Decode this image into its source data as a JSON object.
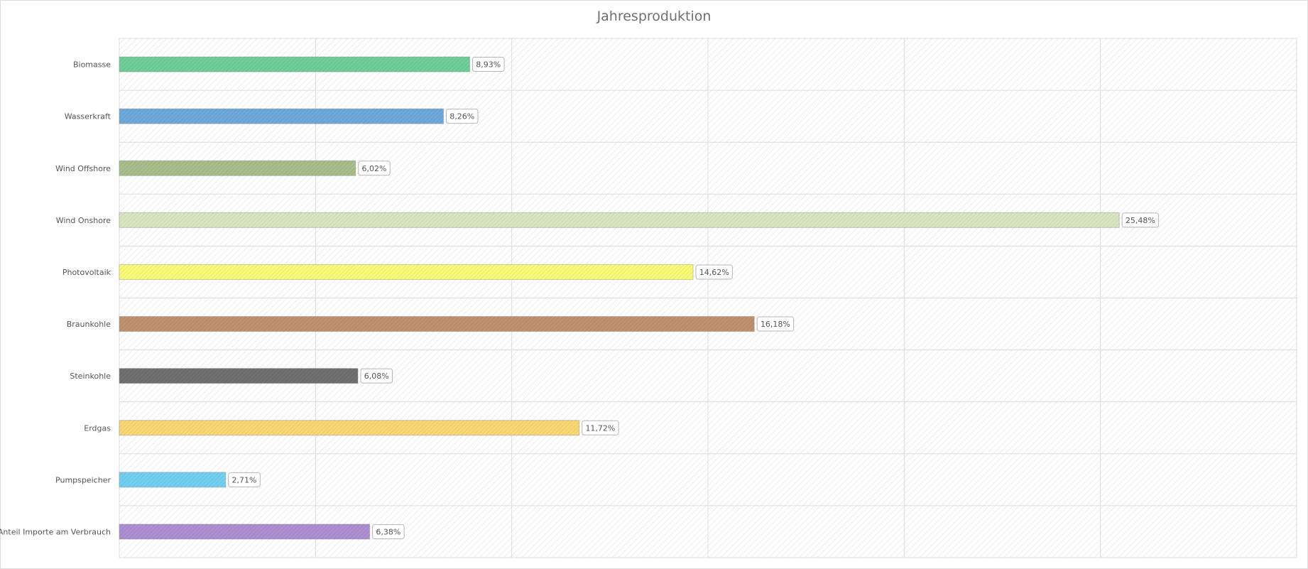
{
  "chart_data": {
    "type": "bar",
    "orientation": "horizontal",
    "title": "Jahresproduktion",
    "xlabel": "",
    "ylabel": "",
    "xlim": [
      0,
      30
    ],
    "grid": true,
    "legend": "none",
    "categories": [
      "Biomasse",
      "Wasserkraft",
      "Wind Offshore",
      "Wind Onshore",
      "Photovoltaik",
      "Braunkohle",
      "Steinkohle",
      "Erdgas",
      "Pumpspeicher",
      "Anteil Importe am Verbrauch"
    ],
    "values": [
      8.93,
      8.26,
      6.02,
      25.48,
      14.62,
      16.18,
      6.08,
      11.72,
      2.71,
      6.38
    ],
    "data_labels": [
      "8,93%",
      "8,26%",
      "6,02%",
      "25,48%",
      "14,62%",
      "16,18%",
      "6,08%",
      "11,72%",
      "2,71%",
      "6,38%"
    ],
    "colors": [
      "#6fcf97",
      "#6fa8dc",
      "#a9be8a",
      "#d9e6c2",
      "#fbfb78",
      "#c0916f",
      "#707070",
      "#fad874",
      "#72d0f0",
      "#ae8fd2"
    ]
  }
}
